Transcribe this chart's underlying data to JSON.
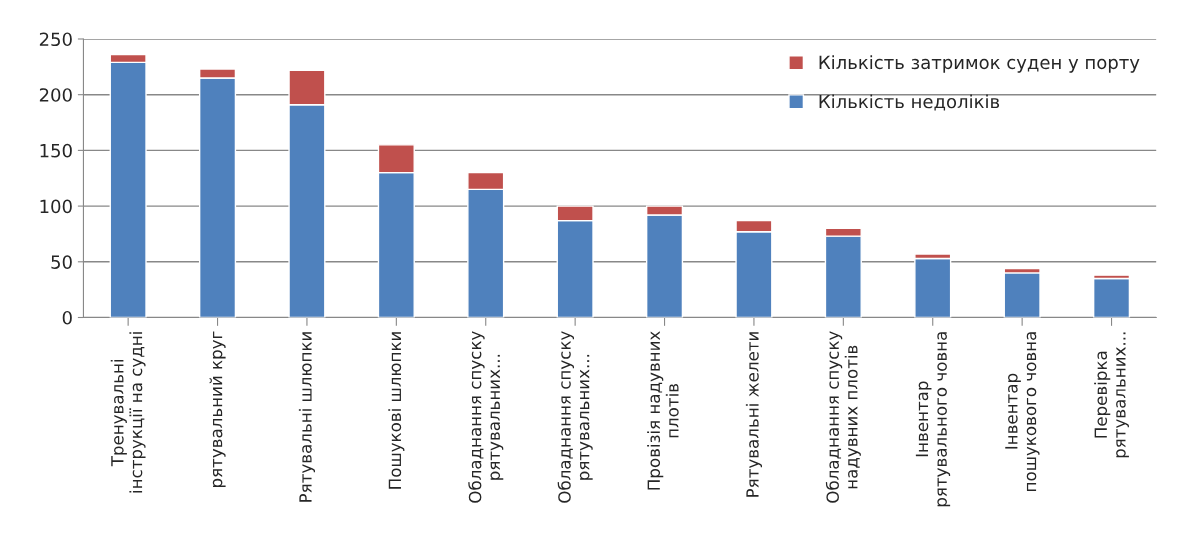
{
  "chart_data": {
    "type": "bar",
    "stacked": true,
    "categories": [
      "Тренувальні\nінструкції на судні",
      "рятувальний круг",
      "Рятувальні шлюпки",
      "Пошукові шлюпки",
      "Обладнання спуску\nрятувальних...",
      "Обладнання спуску\nрятувальних...",
      "Провізія надувних\nплотів",
      "Рятувальні желети",
      "Обладнання спуску\nнадувних плотів",
      "Інвентар\nрятувального човна",
      "Інвентар\nпошукового човна",
      "Перевірка\nрятувальних..."
    ],
    "series": [
      {
        "name": "Кількість недоліків",
        "color": "#4f81bd",
        "values": [
          229,
          215,
          191,
          130,
          115,
          87,
          92,
          77,
          73,
          53,
          40,
          35
        ]
      },
      {
        "name": "Кількість затримок суден у порту",
        "color": "#c0504d",
        "values": [
          7,
          8,
          31,
          25,
          15,
          13,
          8,
          10,
          7,
          4,
          4,
          3
        ]
      }
    ],
    "ylim": [
      0,
      250
    ],
    "yticks": [
      0,
      50,
      100,
      150,
      200,
      250
    ],
    "grid": "y",
    "legend": "top right"
  }
}
